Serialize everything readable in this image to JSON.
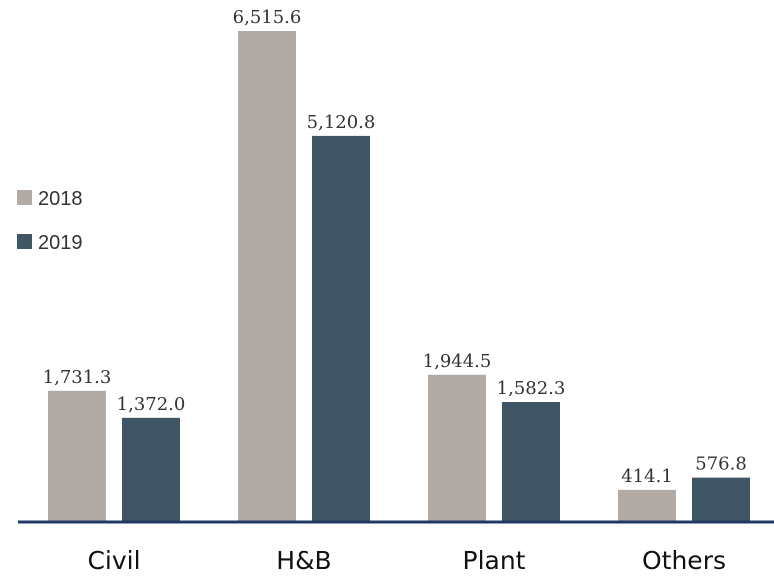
{
  "chart_data": {
    "type": "bar",
    "categories": [
      "Civil",
      "H&B",
      "Plant",
      "Others"
    ],
    "series": [
      {
        "name": "2018",
        "color": "#b2aaa5",
        "values": [
          1731.3,
          6515.6,
          1944.5,
          414.1
        ],
        "labels": [
          "1,731.3",
          "6,515.6",
          "1,944.5",
          "414.1"
        ]
      },
      {
        "name": "2019",
        "color": "#415664",
        "values": [
          1372.0,
          5120.8,
          1582.3,
          576.8
        ],
        "labels": [
          "1,372.0",
          "5,120.8",
          "1,582.3",
          "576.8"
        ]
      }
    ],
    "title": "",
    "xlabel": "",
    "ylabel": "",
    "ylim": [
      0,
      6515.6
    ],
    "grid": false,
    "legend": "left",
    "axis_color": "#1f3864"
  }
}
